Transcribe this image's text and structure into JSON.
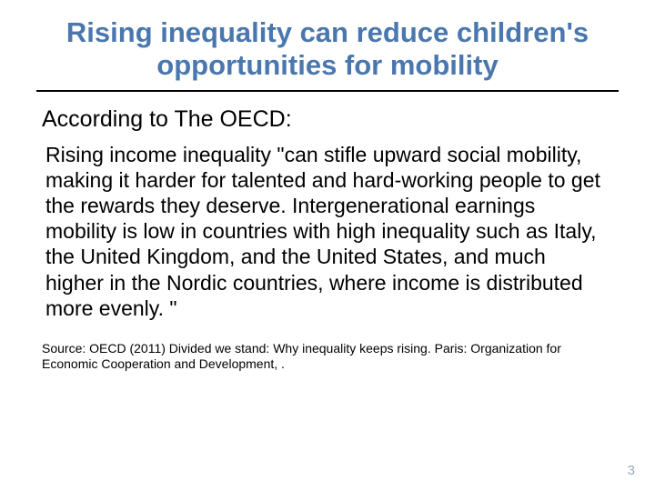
{
  "title": "Rising inequality can reduce children's opportunities for mobility",
  "title_color": "#4a77ad",
  "title_fontsize": "31px",
  "rule_color": "#000000",
  "subtitle": "According to The OECD:",
  "subtitle_fontsize": "25px",
  "body": "Rising income inequality \"can stifle upward social mobility, making it harder for talented and hard-working people to get the rewards they deserve. Intergenerational earnings mobility is low in countries with high inequality such as Italy, the United Kingdom, and the United States, and much higher in the Nordic countries, where income is distributed more evenly. \"",
  "body_fontsize": "23px",
  "source": "Source: OECD (2011) Divided we stand: Why inequality keeps rising. Paris: Organization for Economic Cooperation and Development, .",
  "source_fontsize": "14px",
  "page_number": "3",
  "page_number_fontsize": "15px",
  "page_number_color": "#9aa8b8",
  "background_color": "#ffffff"
}
